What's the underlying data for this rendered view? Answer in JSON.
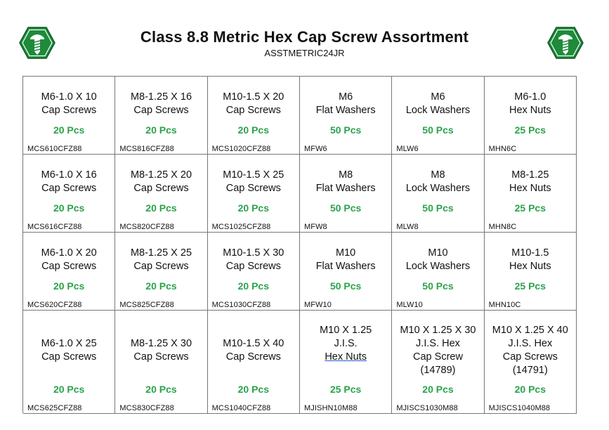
{
  "header": {
    "title": "Class 8.8 Metric Hex Cap Screw Assortment",
    "subtitle": "ASSTMETRIC24JR"
  },
  "logo": {
    "icon": "green-hexagon-screw-icon",
    "color": "#1e8a3a"
  },
  "colors": {
    "qty": "#2aa34a",
    "border": "#777777"
  },
  "rows": [
    [
      {
        "lines": [
          "M6-1.0 X 10",
          "Cap Screws"
        ],
        "qty": "20 Pcs",
        "part": "MCS610CFZ88"
      },
      {
        "lines": [
          "M8-1.25 X 16",
          "Cap Screws"
        ],
        "qty": "20 Pcs",
        "part": "MCS816CFZ88"
      },
      {
        "lines": [
          "M10-1.5 X 20",
          "Cap Screws"
        ],
        "qty": "20 Pcs",
        "part": "MCS1020CFZ88"
      },
      {
        "lines": [
          "M6",
          "Flat Washers"
        ],
        "qty": "50 Pcs",
        "part": "MFW6"
      },
      {
        "lines": [
          "M6",
          "Lock Washers"
        ],
        "qty": "50 Pcs",
        "part": "MLW6"
      },
      {
        "lines": [
          "M6-1.0",
          "Hex Nuts"
        ],
        "qty": "25 Pcs",
        "part": "MHN6C"
      }
    ],
    [
      {
        "lines": [
          "M6-1.0 X 16",
          "Cap Screws"
        ],
        "qty": "20 Pcs",
        "part": "MCS616CFZ88"
      },
      {
        "lines": [
          "M8-1.25 X 20",
          "Cap Screws"
        ],
        "qty": "20 Pcs",
        "part": "MCS820CFZ88"
      },
      {
        "lines": [
          "M10-1.5 X 25",
          "Cap Screws"
        ],
        "qty": "20 Pcs",
        "part": "MCS1025CFZ88"
      },
      {
        "lines": [
          "M8",
          "Flat Washers"
        ],
        "qty": "50 Pcs",
        "part": "MFW8"
      },
      {
        "lines": [
          "M8",
          "Lock Washers"
        ],
        "qty": "50 Pcs",
        "part": "MLW8"
      },
      {
        "lines": [
          "M8-1.25",
          "Hex Nuts"
        ],
        "qty": "25 Pcs",
        "part": "MHN8C"
      }
    ],
    [
      {
        "lines": [
          "M6-1.0 X 20",
          "Cap Screws"
        ],
        "qty": "20 Pcs",
        "part": "MCS620CFZ88"
      },
      {
        "lines": [
          "M8-1.25 X 25",
          "Cap Screws"
        ],
        "qty": "20 Pcs",
        "part": "MCS825CFZ88"
      },
      {
        "lines": [
          "M10-1.5 X 30",
          "Cap Screws"
        ],
        "qty": "20 Pcs",
        "part": "MCS1030CFZ88"
      },
      {
        "lines": [
          "M10",
          "Flat Washers"
        ],
        "qty": "50 Pcs",
        "part": "MFW10"
      },
      {
        "lines": [
          "M10",
          "Lock Washers"
        ],
        "qty": "50 Pcs",
        "part": "MLW10"
      },
      {
        "lines": [
          "M10-1.5",
          "Hex Nuts"
        ],
        "qty": "25 Pcs",
        "part": "MHN10C"
      }
    ],
    [
      {
        "lines": [
          "",
          "M6-1.0 X 25",
          "Cap Screws"
        ],
        "qty": "20 Pcs",
        "part": "MCS625CFZ88"
      },
      {
        "lines": [
          "",
          "M8-1.25 X 30",
          "Cap Screws"
        ],
        "qty": "20 Pcs",
        "part": "MCS830CFZ88"
      },
      {
        "lines": [
          "",
          "M10-1.5 X 40",
          "Cap Screws"
        ],
        "qty": "20 Pcs",
        "part": "MCS1040CFZ88"
      },
      {
        "lines": [
          "M10 X 1.25",
          "J.I.S.",
          "Hex Nuts"
        ],
        "qty": "25 Pcs",
        "part": "MJISHN10M88"
      },
      {
        "lines": [
          "M10 X 1.25 X 30",
          "J.I.S. Hex",
          "Cap Screw",
          "(14789)"
        ],
        "qty": "20 Pcs",
        "part": "MJISCS1030M88"
      },
      {
        "lines": [
          "M10 X 1.25 X 40",
          "J.I.S. Hex",
          "Cap Screws",
          "(14791)"
        ],
        "qty": "20 Pcs",
        "part": "MJISCS1040M88"
      }
    ]
  ]
}
